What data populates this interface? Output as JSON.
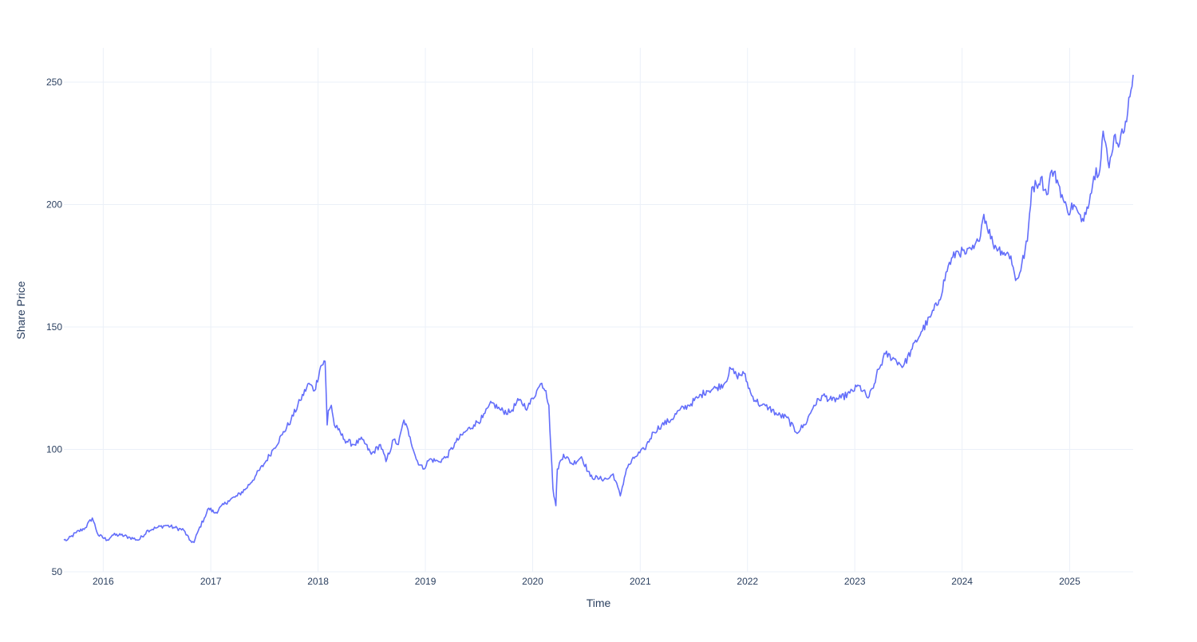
{
  "chart_data": {
    "type": "line",
    "title": "",
    "xlabel": "Time",
    "ylabel": "Share Price",
    "x_start": "2015-08-20",
    "x_end": "2025-08-05",
    "xlim": [
      "2015-08-20",
      "2025-08-05"
    ],
    "ylim": [
      50,
      264
    ],
    "grid": true,
    "legend": "none",
    "colors": {
      "line": "#636efa",
      "grid": "#ebf0f8",
      "text": "#2a3f5f",
      "background": "#ffffff"
    },
    "xticks": [
      {
        "date": "2016-01-01",
        "label": "2016"
      },
      {
        "date": "2017-01-01",
        "label": "2017"
      },
      {
        "date": "2018-01-01",
        "label": "2018"
      },
      {
        "date": "2019-01-01",
        "label": "2019"
      },
      {
        "date": "2020-01-01",
        "label": "2020"
      },
      {
        "date": "2021-01-01",
        "label": "2021"
      },
      {
        "date": "2022-01-01",
        "label": "2022"
      },
      {
        "date": "2023-01-01",
        "label": "2023"
      },
      {
        "date": "2024-01-01",
        "label": "2024"
      },
      {
        "date": "2025-01-01",
        "label": "2025"
      }
    ],
    "yticks": [
      {
        "value": 50,
        "label": "50"
      },
      {
        "value": 100,
        "label": "100"
      },
      {
        "value": 150,
        "label": "150"
      },
      {
        "value": 200,
        "label": "200"
      },
      {
        "value": 250,
        "label": "250"
      }
    ],
    "series": [
      {
        "name": "",
        "x": [
          "2015-08-20",
          "2015-09-01",
          "2015-10-01",
          "2015-11-01",
          "2015-11-25",
          "2015-12-15",
          "2016-01-15",
          "2016-02-01",
          "2016-03-01",
          "2016-04-01",
          "2016-05-01",
          "2016-06-01",
          "2016-07-01",
          "2016-08-01",
          "2016-09-01",
          "2016-10-01",
          "2016-10-20",
          "2016-11-05",
          "2016-11-20",
          "2016-12-10",
          "2016-12-25",
          "2017-01-15",
          "2017-03-01",
          "2017-04-01",
          "2017-05-01",
          "2017-06-01",
          "2017-07-01",
          "2017-08-01",
          "2017-09-01",
          "2017-10-01",
          "2017-11-01",
          "2017-12-01",
          "2017-12-20",
          "2018-01-10",
          "2018-01-25",
          "2018-02-01",
          "2018-02-05",
          "2018-02-15",
          "2018-02-25",
          "2018-03-10",
          "2018-04-01",
          "2018-05-01",
          "2018-06-01",
          "2018-07-01",
          "2018-08-01",
          "2018-08-20",
          "2018-09-15",
          "2018-10-01",
          "2018-10-20",
          "2018-11-10",
          "2018-12-01",
          "2018-12-24",
          "2019-01-15",
          "2019-02-15",
          "2019-03-15",
          "2019-04-15",
          "2019-05-15",
          "2019-06-15",
          "2019-07-15",
          "2019-08-15",
          "2019-09-15",
          "2019-10-15",
          "2019-11-15",
          "2019-12-15",
          "2020-01-15",
          "2020-02-01",
          "2020-02-15",
          "2020-02-25",
          "2020-03-10",
          "2020-03-20",
          "2020-03-25",
          "2020-04-15",
          "2020-05-15",
          "2020-06-15",
          "2020-07-15",
          "2020-08-15",
          "2020-09-15",
          "2020-10-01",
          "2020-10-25",
          "2020-11-15",
          "2020-12-15",
          "2021-01-15",
          "2021-02-15",
          "2021-03-15",
          "2021-04-15",
          "2021-05-15",
          "2021-06-15",
          "2021-07-15",
          "2021-08-15",
          "2021-09-15",
          "2021-10-15",
          "2021-11-05",
          "2021-11-25",
          "2021-12-20",
          "2022-01-15",
          "2022-02-15",
          "2022-03-15",
          "2022-04-15",
          "2022-05-15",
          "2022-06-15",
          "2022-07-15",
          "2022-08-15",
          "2022-09-15",
          "2022-10-15",
          "2022-11-15",
          "2022-12-15",
          "2023-01-15",
          "2023-02-15",
          "2023-03-05",
          "2023-03-15",
          "2023-04-15",
          "2023-05-15",
          "2023-06-15",
          "2023-07-15",
          "2023-08-15",
          "2023-09-15",
          "2023-10-15",
          "2023-11-15",
          "2023-12-15",
          "2024-01-15",
          "2024-02-10",
          "2024-02-25",
          "2024-03-15",
          "2024-04-15",
          "2024-05-15",
          "2024-06-15",
          "2024-07-01",
          "2024-07-15",
          "2024-08-10",
          "2024-08-25",
          "2024-09-10",
          "2024-09-25",
          "2024-10-15",
          "2024-11-01",
          "2024-11-20",
          "2024-12-10",
          "2024-12-25",
          "2025-01-15",
          "2025-02-10",
          "2025-03-01",
          "2025-03-20",
          "2025-04-01",
          "2025-04-10",
          "2025-04-25",
          "2025-05-15",
          "2025-06-01",
          "2025-06-20",
          "2025-07-10",
          "2025-07-25",
          "2025-08-05"
        ],
        "y": [
          63,
          63,
          66,
          68,
          72,
          65,
          63,
          65,
          65,
          64,
          63,
          67,
          68,
          69,
          68,
          67,
          63,
          62,
          67,
          72,
          76,
          74,
          79,
          81,
          84,
          89,
          94,
          100,
          106,
          112,
          120,
          127,
          124,
          134,
          136,
          110,
          116,
          118,
          110,
          108,
          104,
          102,
          104,
          98,
          102,
          95,
          104,
          102,
          112,
          105,
          96,
          92,
          96,
          95,
          97,
          103,
          107,
          110,
          113,
          119,
          116,
          115,
          120,
          117,
          124,
          127,
          124,
          118,
          84,
          77,
          92,
          98,
          94,
          97,
          89,
          88,
          88,
          90,
          81,
          92,
          97,
          100,
          107,
          110,
          112,
          116,
          118,
          121,
          124,
          125,
          127,
          133,
          130,
          131,
          122,
          118,
          117,
          114,
          113,
          107,
          110,
          118,
          122,
          120,
          121,
          123,
          126,
          121,
          125,
          130,
          139,
          137,
          134,
          141,
          148,
          154,
          161,
          175,
          181,
          180,
          182,
          185,
          196,
          184,
          181,
          179,
          169,
          172,
          185,
          207,
          208,
          211,
          204,
          214,
          210,
          202,
          197,
          200,
          193,
          199,
          208,
          215,
          212,
          230,
          215,
          228,
          225,
          234,
          244,
          253
        ]
      }
    ]
  }
}
